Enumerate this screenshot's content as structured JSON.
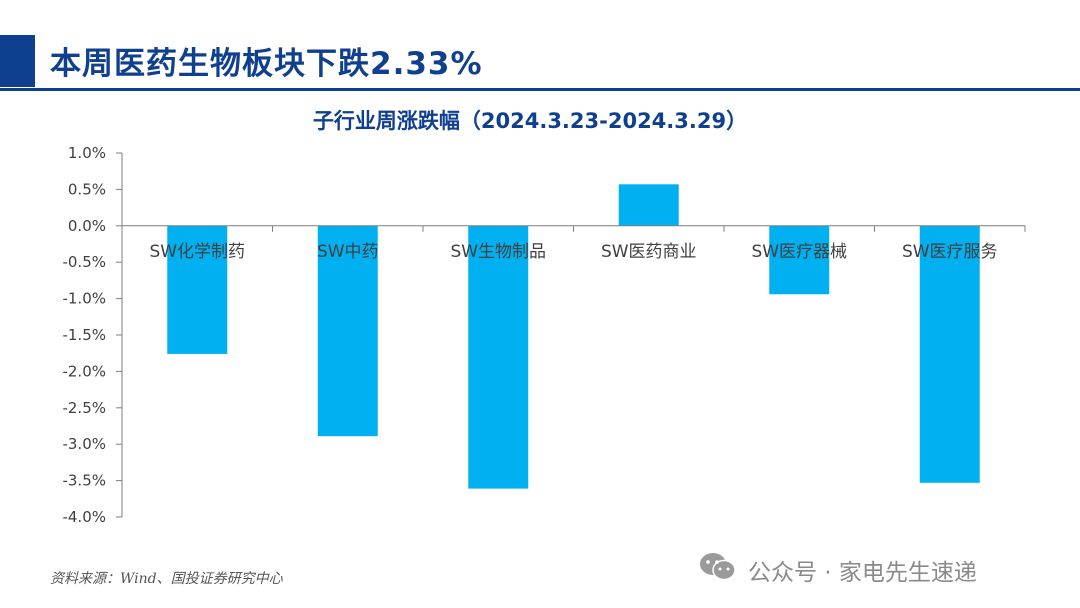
{
  "header": {
    "title": "本周医药生物板块下跌2.33%"
  },
  "footer": {
    "source": "资料来源：Wind、国投证券研究中心",
    "watermark": "公众号 · 家电先生速递",
    "watermark_icon": "wechat-icon"
  },
  "colors": {
    "accent": "#0f3f8f",
    "bar": "#00b0f0"
  },
  "chart_data": {
    "type": "bar",
    "title": "子行业周涨跌幅（2024.3.23-2024.3.29）",
    "xlabel": "",
    "ylabel": "",
    "categories": [
      "SW化学制药",
      "SW中药",
      "SW生物制品",
      "SW医药商业",
      "SW医疗器械",
      "SW医疗服务"
    ],
    "values": [
      -1.76,
      -2.89,
      -3.61,
      0.57,
      -0.94,
      -3.53
    ],
    "ylim": [
      -4.0,
      1.0
    ],
    "yticks": [
      "1.0%",
      "0.5%",
      "0.0%",
      "-0.5%",
      "-1.0%",
      "-1.5%",
      "-2.0%",
      "-2.5%",
      "-3.0%",
      "-3.5%",
      "-4.0%"
    ],
    "grid": false,
    "legend": "none"
  }
}
